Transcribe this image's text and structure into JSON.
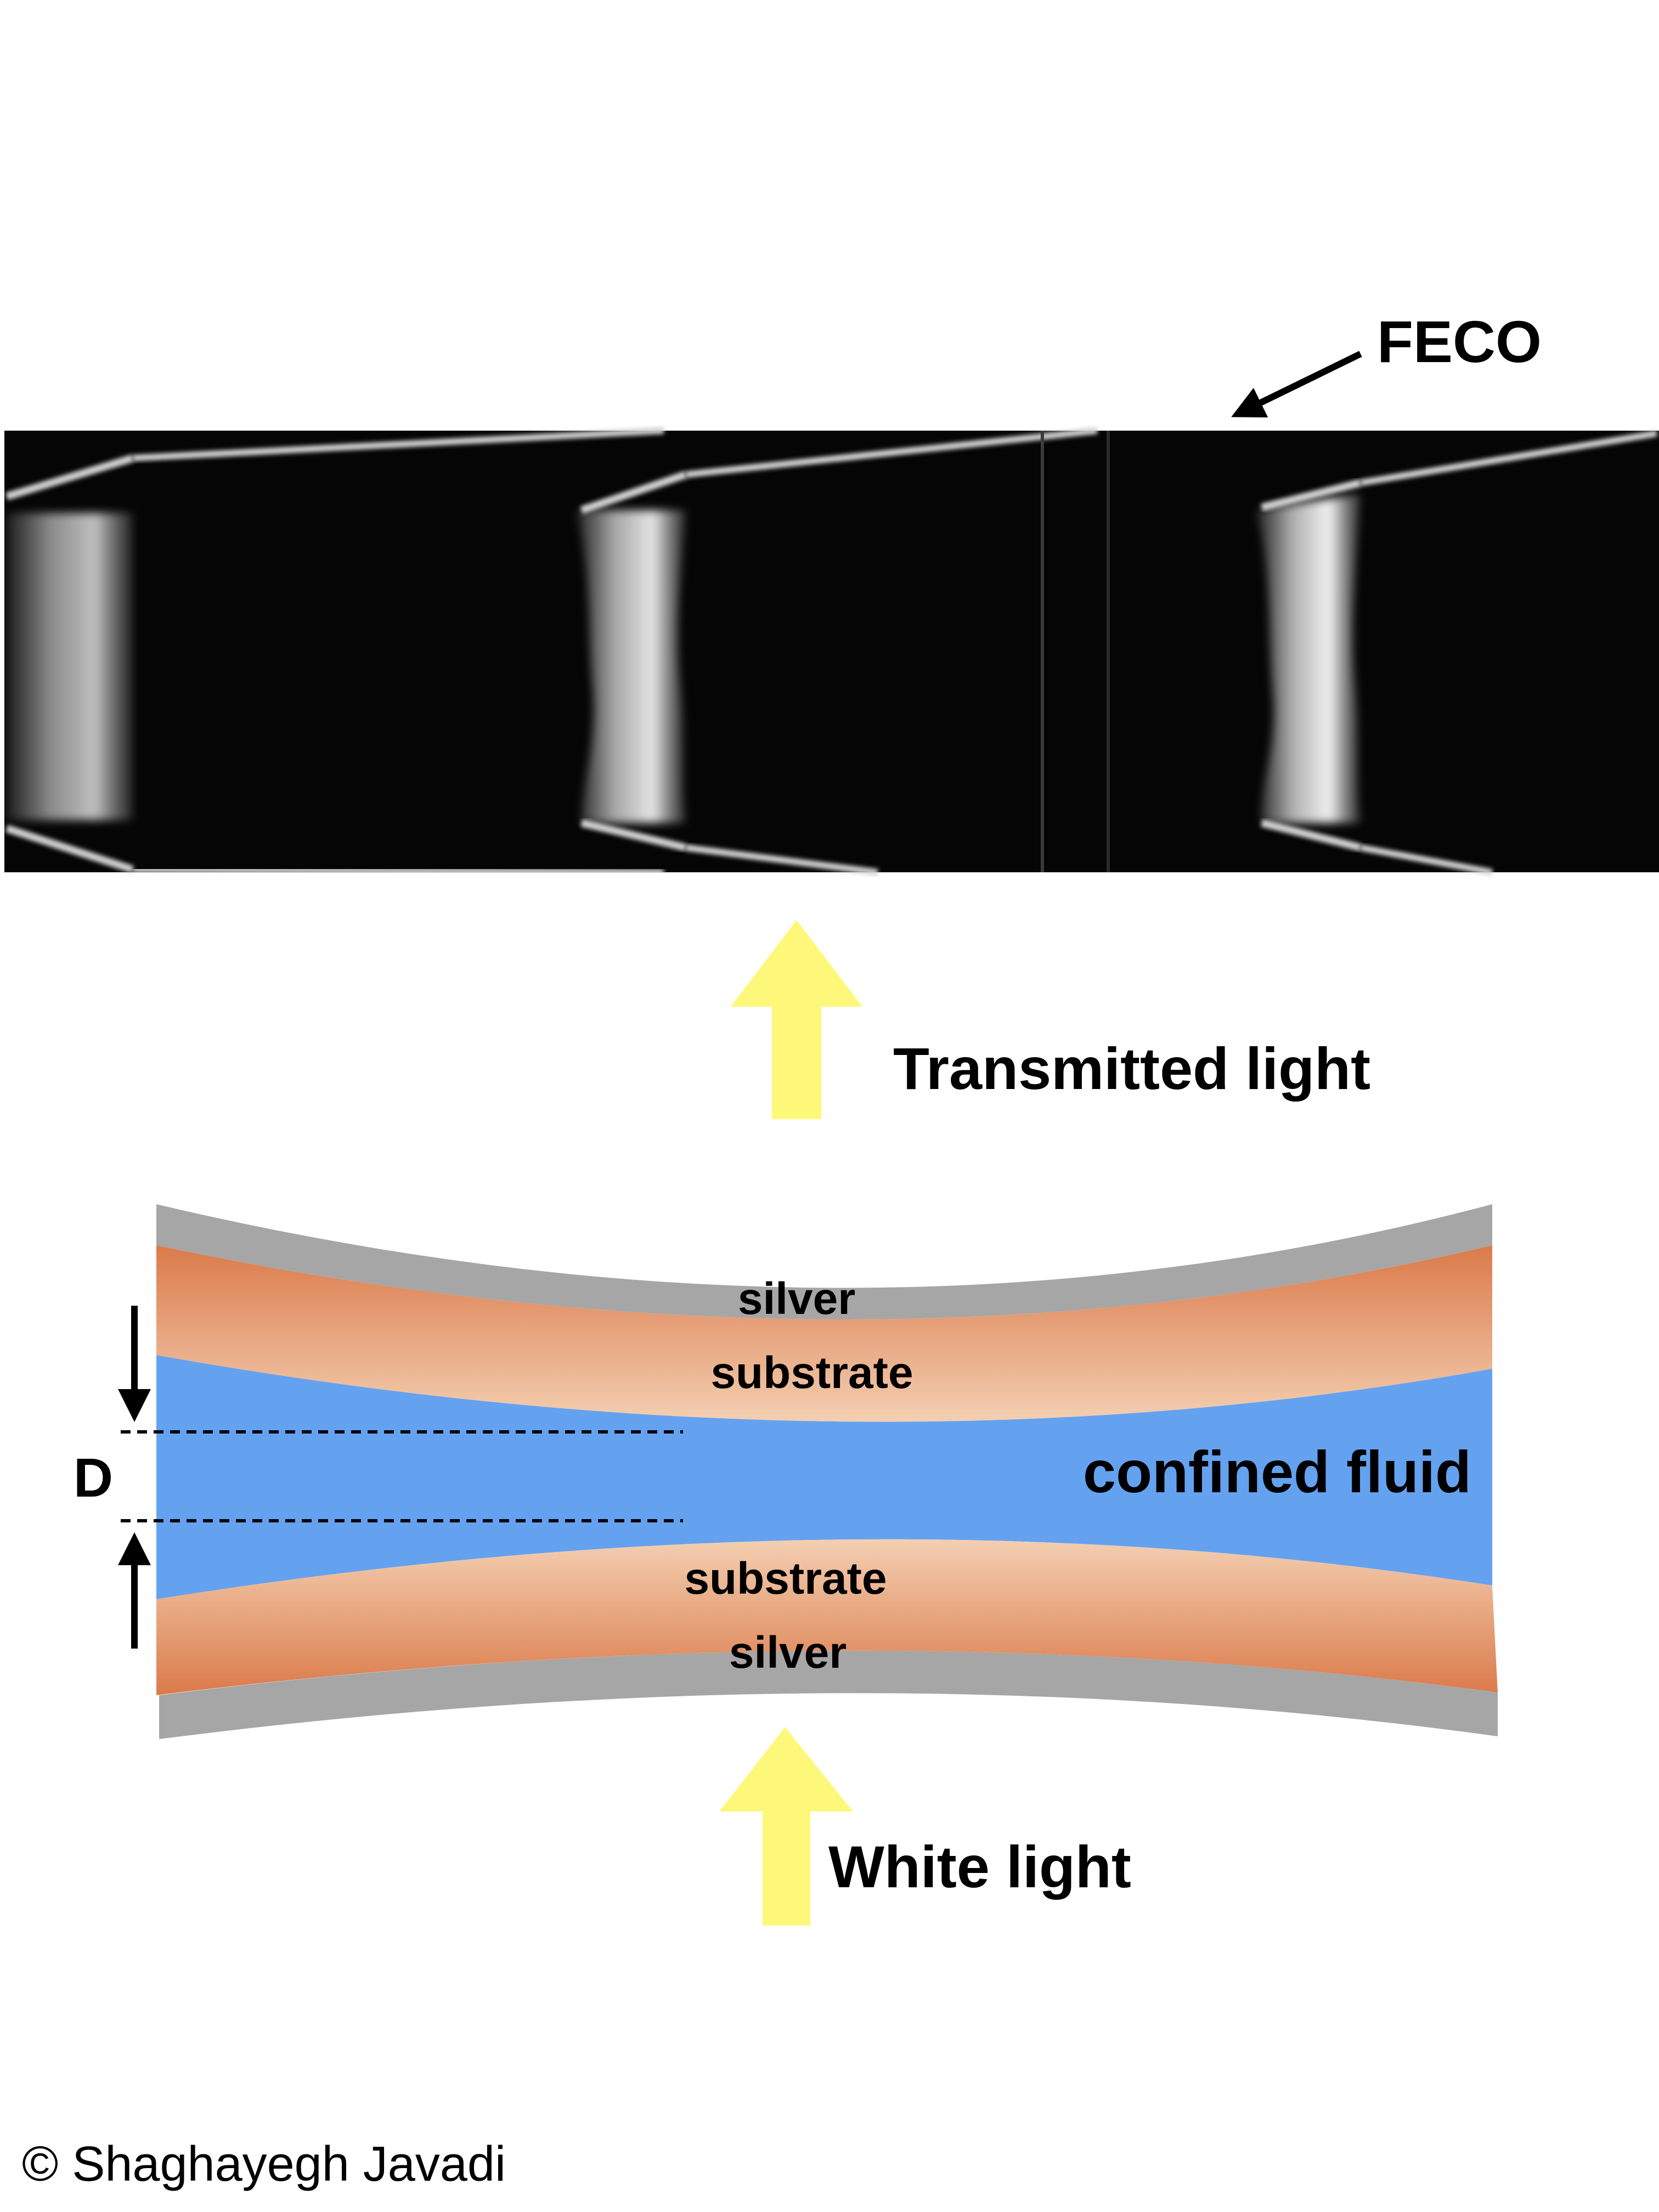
{
  "labels": {
    "feco": "FECO",
    "transmitted_light": "Transmitted light",
    "white_light": "White light",
    "silver_top": "silver",
    "substrate_top": "substrate",
    "confined_fluid": "confined fluid",
    "substrate_bottom": "substrate",
    "silver_bottom": "silver",
    "distance": "D"
  },
  "copyright": "© Shaghayegh Javadi",
  "colors": {
    "background": "#ffffff",
    "feco_image": "#050505",
    "fringe": "#d8d8d8",
    "silver": "#a6a6a6",
    "substrate_light": "#f3cfb2",
    "substrate_dark": "#db7a4a",
    "confined_fluid": "#64a2f0",
    "light_arrow": "#fdf87a",
    "annotation": "#000000"
  }
}
